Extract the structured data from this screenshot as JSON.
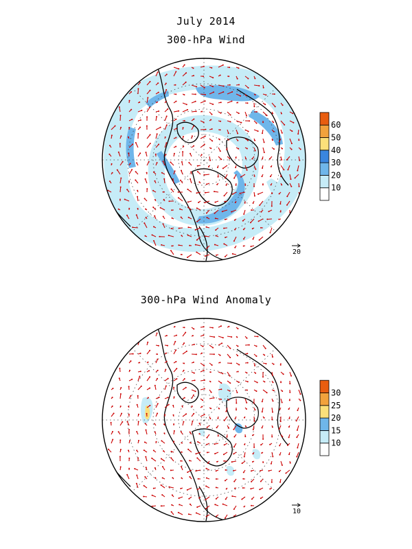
{
  "titles": {
    "date": "July 2014",
    "map1": "300-hPa Wind",
    "map2": "300-hPa Wind Anomaly"
  },
  "map1": {
    "colorbar": {
      "labels": [
        "10",
        "20",
        "30",
        "40",
        "50",
        "60"
      ],
      "colors": [
        "#ffffff",
        "#c6ecf7",
        "#6fb6ea",
        "#3a86df",
        "#fbe07a",
        "#f2a23c",
        "#e85d10"
      ]
    },
    "reference_vector": "20"
  },
  "map2": {
    "colorbar": {
      "labels": [
        "10",
        "15",
        "20",
        "25",
        "30"
      ],
      "colors": [
        "#ffffff",
        "#c6ecf7",
        "#6fb6ea",
        "#fbe07a",
        "#f2a23c",
        "#e85d10"
      ]
    },
    "reference_vector": "10"
  },
  "colors": {
    "vector": "#cc0000",
    "coast": "#000000",
    "grid": "#444444"
  }
}
